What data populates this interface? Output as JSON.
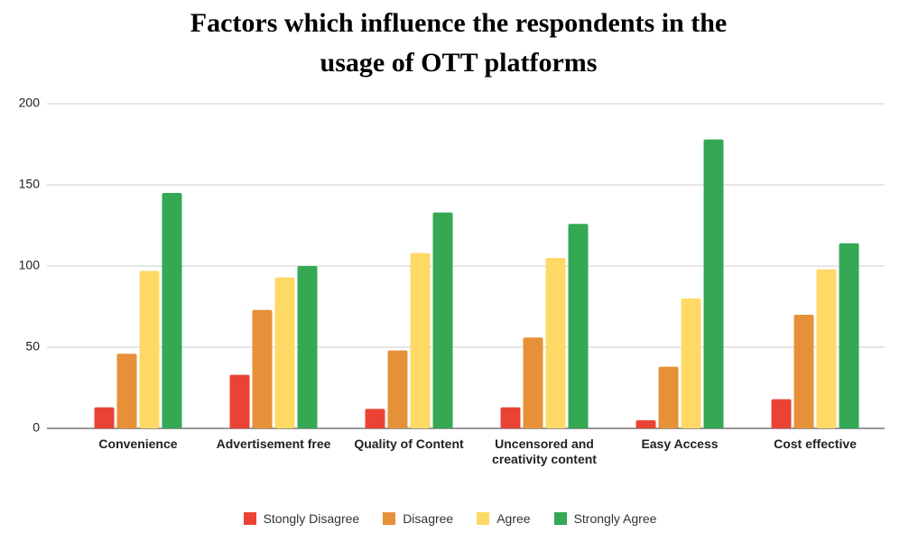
{
  "chart_data": {
    "type": "bar",
    "title": "Factors which influence the respondents in the usage of OTT platforms",
    "categories": [
      "Convenience",
      "Advertisement free",
      "Quality of Content",
      "Uncensored and creativity content",
      "Easy Access",
      "Cost effective"
    ],
    "series": [
      {
        "name": "Stongly Disagree",
        "color": "#ea4335",
        "values": [
          13,
          33,
          12,
          13,
          5,
          18
        ]
      },
      {
        "name": "Disagree",
        "color": "#e69138",
        "values": [
          46,
          73,
          48,
          56,
          38,
          70
        ]
      },
      {
        "name": "Agree",
        "color": "#ffd966",
        "values": [
          97,
          93,
          108,
          105,
          80,
          98
        ]
      },
      {
        "name": "Strongly Agree",
        "color": "#34a853",
        "values": [
          145,
          100,
          133,
          126,
          178,
          114
        ]
      }
    ],
    "ylim": [
      0,
      200
    ],
    "yticks": [
      0,
      50,
      100,
      150,
      200
    ],
    "grid": true,
    "legend": "bottom"
  }
}
